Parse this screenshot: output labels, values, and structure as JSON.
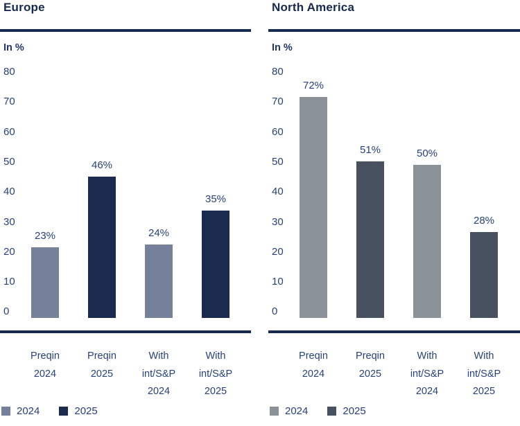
{
  "colors": {
    "background": "#ffffff",
    "title_text": "#16294f",
    "axis_text": "#27417b",
    "rule": "#16294f"
  },
  "chart_data": [
    {
      "type": "bar",
      "title": "Europe",
      "ylabel": "In %",
      "ylim": [
        0,
        80
      ],
      "yticks": [
        80,
        70,
        60,
        50,
        40,
        30,
        20,
        10,
        0
      ],
      "grid": false,
      "legend_position": "bottom-left",
      "series_colors": {
        "2024": "#75819b",
        "2025": "#1b2a4f"
      },
      "bars": [
        {
          "category_lines": [
            "Preqin",
            "2024"
          ],
          "series": "2024",
          "value": 23,
          "label": "23%"
        },
        {
          "category_lines": [
            "Preqin",
            "2025"
          ],
          "series": "2025",
          "value": 46,
          "label": "46%"
        },
        {
          "category_lines": [
            "With",
            "int/S&P",
            "2024"
          ],
          "series": "2024",
          "value": 24,
          "label": "24%"
        },
        {
          "category_lines": [
            "With",
            "int/S&P",
            "2025"
          ],
          "series": "2025",
          "value": 35,
          "label": "35%"
        }
      ],
      "legend": [
        {
          "label": "2024",
          "color": "#75819b"
        },
        {
          "label": "2025",
          "color": "#1b2a4f"
        }
      ]
    },
    {
      "type": "bar",
      "title": "North America",
      "ylabel": "In %",
      "ylim": [
        0,
        80
      ],
      "yticks": [
        80,
        70,
        60,
        50,
        40,
        30,
        20,
        10,
        0
      ],
      "grid": false,
      "legend_position": "bottom-left",
      "series_colors": {
        "2024": "#8a9199",
        "2025": "#485160"
      },
      "bars": [
        {
          "category_lines": [
            "Preqin",
            "2024"
          ],
          "series": "2024",
          "value": 72,
          "label": "72%"
        },
        {
          "category_lines": [
            "Preqin",
            "2025"
          ],
          "series": "2025",
          "value": 51,
          "label": "51%"
        },
        {
          "category_lines": [
            "With",
            "int/S&P",
            "2024"
          ],
          "series": "2024",
          "value": 50,
          "label": "50%"
        },
        {
          "category_lines": [
            "With",
            "int/S&P",
            "2025"
          ],
          "series": "2025",
          "value": 28,
          "label": "28%"
        }
      ],
      "legend": [
        {
          "label": "2024",
          "color": "#8a9199"
        },
        {
          "label": "2025",
          "color": "#485160"
        }
      ]
    }
  ]
}
